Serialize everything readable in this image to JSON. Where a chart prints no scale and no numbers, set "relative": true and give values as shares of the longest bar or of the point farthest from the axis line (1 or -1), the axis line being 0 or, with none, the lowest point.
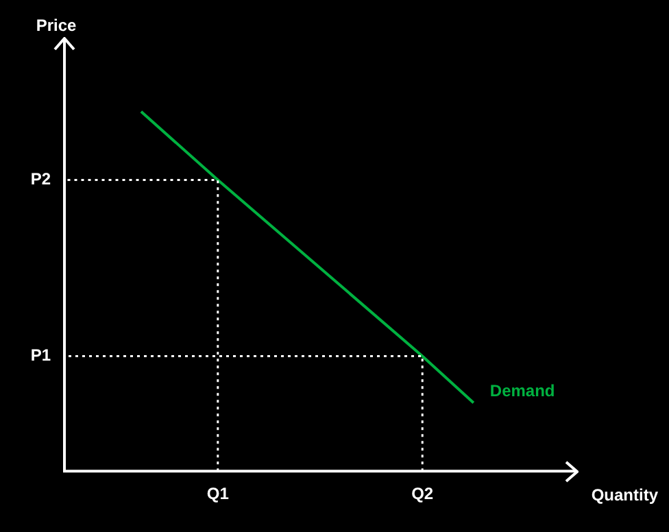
{
  "chart_data": {
    "type": "line",
    "xlabel": "Quantity",
    "ylabel": "Price",
    "relative": true,
    "categories": [
      null,
      null,
      null,
      null,
      null,
      null,
      "Q1",
      null,
      null,
      null,
      null,
      null,
      null,
      null,
      "Q2",
      null,
      null,
      null,
      null,
      null,
      null
    ],
    "series": [
      {
        "name": "Demand",
        "color": "#00b140",
        "values": [
          null,
          null,
          null,
          1,
          null,
          null,
          0.81,
          null,
          null,
          null,
          null,
          null,
          null,
          null,
          0.32,
          null,
          0.19,
          null,
          null,
          null,
          null
        ]
      }
    ],
    "annotations": [
      "P2",
      "P1"
    ],
    "legend": false,
    "marker": "none",
    "line_style": "solid"
  }
}
